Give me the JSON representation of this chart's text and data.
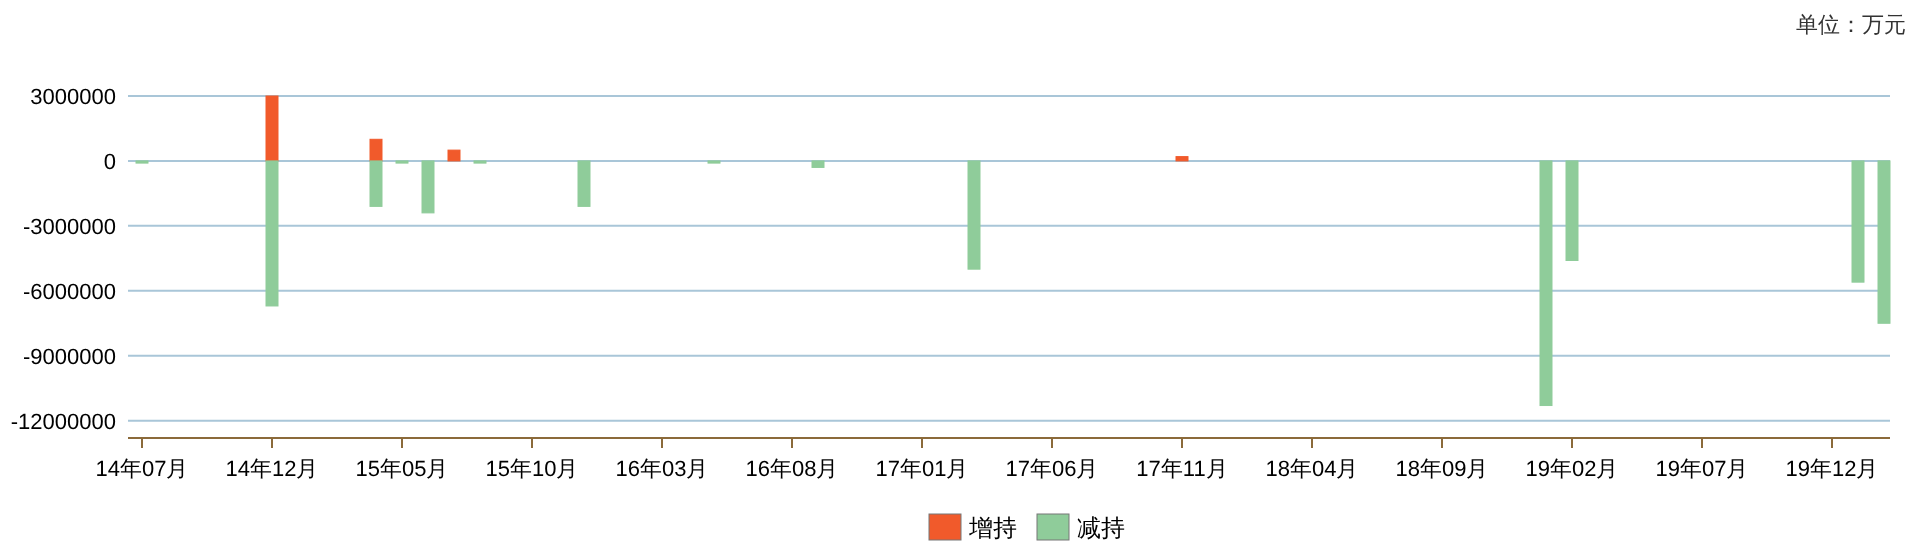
{
  "chart_data": {
    "type": "bar",
    "stacked": true,
    "annotations": [
      "单位：万元"
    ],
    "categories": [
      "14年07月",
      null,
      null,
      null,
      null,
      "14年12月",
      null,
      null,
      null,
      null,
      "15年05月",
      null,
      null,
      null,
      null,
      "15年10月",
      null,
      null,
      null,
      null,
      "16年03月",
      null,
      null,
      null,
      null,
      "16年08月",
      null,
      null,
      null,
      null,
      "17年01月",
      null,
      null,
      null,
      null,
      "17年06月",
      null,
      null,
      null,
      null,
      "17年11月",
      null,
      null,
      null,
      null,
      "18年04月",
      null,
      null,
      null,
      null,
      "18年09月",
      null,
      null,
      null,
      null,
      "19年02月",
      null,
      null,
      null,
      null,
      "19年07月",
      null,
      null,
      null,
      null,
      "19年12月",
      null,
      null
    ],
    "series": [
      {
        "name": "增持",
        "color": "#f15a2b",
        "values": [
          null,
          null,
          null,
          null,
          null,
          3000000,
          null,
          null,
          null,
          1000000,
          null,
          null,
          500000,
          null,
          null,
          null,
          null,
          null,
          null,
          null,
          null,
          null,
          null,
          null,
          null,
          null,
          null,
          null,
          null,
          null,
          null,
          null,
          null,
          null,
          null,
          null,
          null,
          null,
          null,
          null,
          200000,
          null,
          null,
          null,
          null,
          null,
          null,
          null,
          null,
          null,
          null,
          null,
          null,
          null,
          null,
          null,
          null,
          null,
          null,
          null,
          null,
          null,
          null,
          null,
          null,
          null,
          null,
          null
        ]
      },
      {
        "name": "减持",
        "color": "#8fcc9a",
        "values": [
          -100000,
          null,
          null,
          null,
          null,
          -6700000,
          null,
          null,
          null,
          -2100000,
          -100000,
          -2400000,
          null,
          -100000,
          null,
          null,
          null,
          -2100000,
          null,
          null,
          null,
          null,
          -100000,
          null,
          null,
          null,
          -300000,
          null,
          null,
          null,
          null,
          null,
          -5000000,
          null,
          null,
          null,
          null,
          null,
          null,
          null,
          null,
          null,
          null,
          null,
          null,
          null,
          null,
          null,
          null,
          null,
          null,
          null,
          null,
          null,
          -11300000,
          -4600000,
          null,
          null,
          null,
          null,
          null,
          null,
          null,
          null,
          null,
          null,
          -5600000,
          -7500000
        ]
      }
    ],
    "ylim": [
      -12800000,
      3000000
    ],
    "yticks": [
      -12000000,
      -9000000,
      -6000000,
      -3000000,
      0,
      3000000
    ],
    "grid": "y",
    "legend": "bottom"
  }
}
